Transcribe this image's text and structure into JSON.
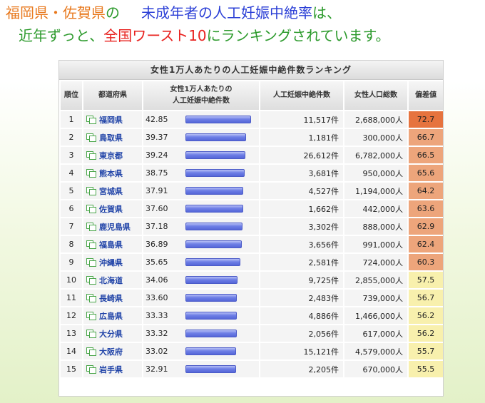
{
  "headline": {
    "line1": [
      {
        "text": "福岡県・佐賀県",
        "color": "#e8781c"
      },
      {
        "text": "の",
        "color": "#2c9a2c"
      },
      {
        "text": "未成年者の人工妊娠中絶率",
        "color": "#2b3fd6"
      },
      {
        "text": "は、",
        "color": "#2c9a2c"
      }
    ],
    "line2": [
      {
        "text": "近年ずっと、",
        "color": "#2c9a2c"
      },
      {
        "text": "全国ワースト10",
        "color": "#e8211e"
      },
      {
        "text": "にランキングされています。",
        "color": "#2c9a2c"
      }
    ]
  },
  "table": {
    "title": "女性1万人あたりの人工妊娠中絶件数ランキング",
    "headers": {
      "rank": "順位",
      "pref": "都道府県",
      "rate_line1": "女性1万人あたりの",
      "rate_line2": "人工妊娠中絶件数",
      "abortions": "人工妊娠中絶件数",
      "population": "女性人口総数",
      "deviation": "偏差値"
    },
    "bar_max": 42.85,
    "rows": [
      {
        "rank": "1",
        "pref": "福岡県",
        "rate": "42.85",
        "abortions": "11,517件",
        "population": "2,688,000人",
        "deviation": "72.7",
        "dev_color": "#e6733e"
      },
      {
        "rank": "2",
        "pref": "鳥取県",
        "rate": "39.37",
        "abortions": "1,181件",
        "population": "300,000人",
        "deviation": "66.7",
        "dev_color": "#eda57b"
      },
      {
        "rank": "3",
        "pref": "東京都",
        "rate": "39.24",
        "abortions": "26,612件",
        "population": "6,782,000人",
        "deviation": "66.5",
        "dev_color": "#eda57b"
      },
      {
        "rank": "4",
        "pref": "熊本県",
        "rate": "38.75",
        "abortions": "3,681件",
        "population": "950,000人",
        "deviation": "65.6",
        "dev_color": "#eda57b"
      },
      {
        "rank": "5",
        "pref": "宮城県",
        "rate": "37.91",
        "abortions": "4,527件",
        "population": "1,194,000人",
        "deviation": "64.2",
        "dev_color": "#eda57b"
      },
      {
        "rank": "6",
        "pref": "佐賀県",
        "rate": "37.60",
        "abortions": "1,662件",
        "population": "442,000人",
        "deviation": "63.6",
        "dev_color": "#eda57b"
      },
      {
        "rank": "7",
        "pref": "鹿児島県",
        "rate": "37.18",
        "abortions": "3,302件",
        "population": "888,000人",
        "deviation": "62.9",
        "dev_color": "#eda57b"
      },
      {
        "rank": "8",
        "pref": "福島県",
        "rate": "36.89",
        "abortions": "3,656件",
        "population": "991,000人",
        "deviation": "62.4",
        "dev_color": "#eda57b"
      },
      {
        "rank": "9",
        "pref": "沖縄県",
        "rate": "35.65",
        "abortions": "2,581件",
        "population": "724,000人",
        "deviation": "60.3",
        "dev_color": "#eda57b"
      },
      {
        "rank": "10",
        "pref": "北海道",
        "rate": "34.06",
        "abortions": "9,725件",
        "population": "2,855,000人",
        "deviation": "57.5",
        "dev_color": "#f8f0ad"
      },
      {
        "rank": "11",
        "pref": "長崎県",
        "rate": "33.60",
        "abortions": "2,483件",
        "population": "739,000人",
        "deviation": "56.7",
        "dev_color": "#f8f0ad"
      },
      {
        "rank": "12",
        "pref": "広島県",
        "rate": "33.33",
        "abortions": "4,886件",
        "population": "1,466,000人",
        "deviation": "56.2",
        "dev_color": "#f8f0ad"
      },
      {
        "rank": "13",
        "pref": "大分県",
        "rate": "33.32",
        "abortions": "2,056件",
        "population": "617,000人",
        "deviation": "56.2",
        "dev_color": "#f8f0ad"
      },
      {
        "rank": "14",
        "pref": "大阪府",
        "rate": "33.02",
        "abortions": "15,121件",
        "population": "4,579,000人",
        "deviation": "55.7",
        "dev_color": "#f8f0ad"
      },
      {
        "rank": "15",
        "pref": "岩手県",
        "rate": "32.91",
        "abortions": "2,205件",
        "population": "670,000人",
        "deviation": "55.5",
        "dev_color": "#f8f0ad"
      }
    ]
  }
}
